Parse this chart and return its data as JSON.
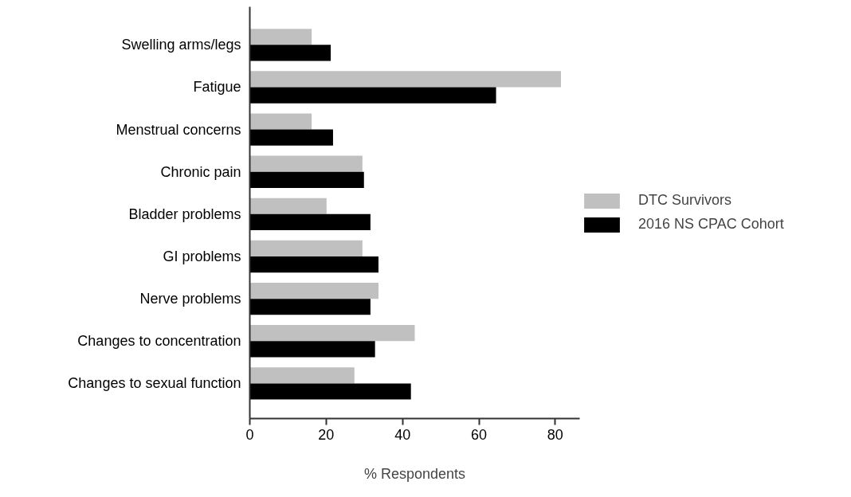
{
  "chart_data": {
    "type": "bar",
    "orientation": "horizontal",
    "xlabel": "% Respondents",
    "categories": [
      "Swelling arms/legs",
      "Fatigue",
      "Menstrual concerns",
      "Chronic pain",
      "Bladder problems",
      "GI problems",
      "Nerve problems",
      "Changes to concentration",
      "Changes to sexual function"
    ],
    "series": [
      {
        "name": "DTC Survivors",
        "color": "#c0c0c0",
        "values": [
          16.2,
          81.5,
          16.2,
          29.5,
          20.1,
          29.5,
          33.7,
          43.2,
          27.4
        ]
      },
      {
        "name": "2016 NS CPAC Cohort",
        "color": "#000000",
        "values": [
          21.2,
          64.5,
          21.8,
          29.9,
          31.6,
          33.7,
          31.6,
          32.8,
          42.2
        ]
      }
    ],
    "xlim": [
      0,
      86.4
    ],
    "xticks": [
      0,
      20,
      40,
      60,
      80
    ],
    "legend": "right"
  }
}
